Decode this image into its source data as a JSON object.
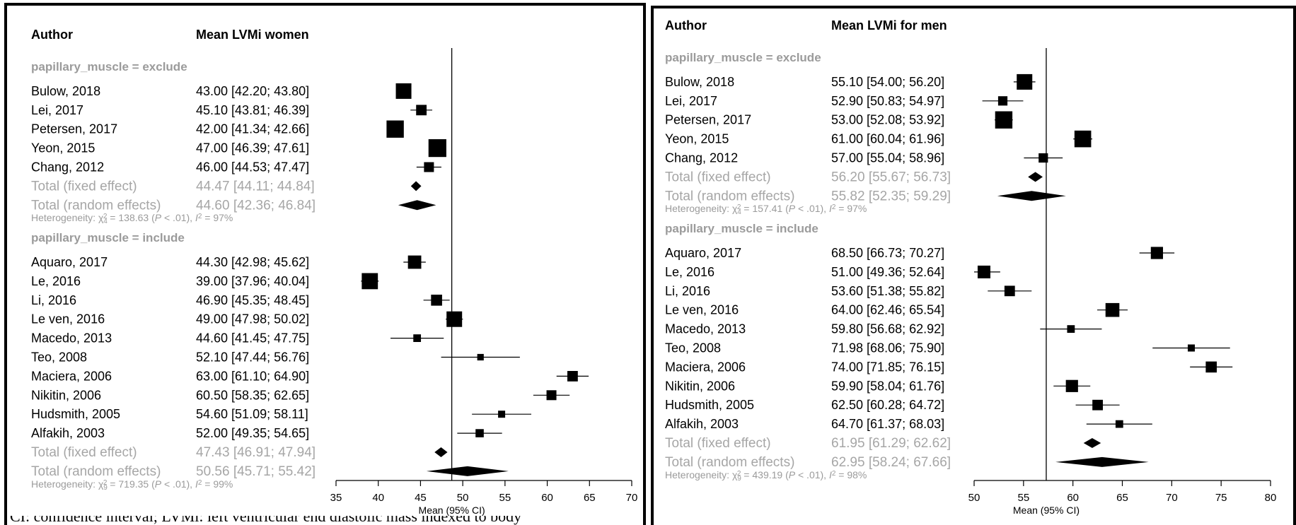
{
  "chart_data": [
    {
      "type": "forest",
      "columns": {
        "author": "Author",
        "estimate": "Mean LVMi women"
      },
      "xlabel": "Mean (95% CI)",
      "xlim": [
        35,
        70
      ],
      "xticks": [
        35,
        40,
        45,
        50,
        55,
        60,
        65,
        70
      ],
      "reference_line": 48.7,
      "groups": [
        {
          "label": "papillary_muscle = exclude",
          "studies": [
            {
              "author": "Bulow, 2018",
              "mean": 43.0,
              "lower": 42.2,
              "upper": 43.8,
              "ci_text": "43.00 [42.20; 43.80]",
              "weight": 1.0
            },
            {
              "author": "Lei, 2017",
              "mean": 45.1,
              "lower": 43.81,
              "upper": 46.39,
              "ci_text": "45.10 [43.81; 46.39]",
              "weight": 0.55
            },
            {
              "author": "Petersen, 2017",
              "mean": 42.0,
              "lower": 41.34,
              "upper": 42.66,
              "ci_text": "42.00 [41.34; 42.66]",
              "weight": 1.15
            },
            {
              "author": "Yeon, 2015",
              "mean": 47.0,
              "lower": 46.39,
              "upper": 47.61,
              "ci_text": "47.00 [46.39; 47.61]",
              "weight": 1.2
            },
            {
              "author": "Chang, 2012",
              "mean": 46.0,
              "lower": 44.53,
              "upper": 47.47,
              "ci_text": "46.00 [44.53; 47.47]",
              "weight": 0.5
            }
          ],
          "fixed": {
            "label": "Total (fixed effect)",
            "mean": 44.47,
            "lower": 44.11,
            "upper": 44.84,
            "ci_text": "44.47 [44.11; 44.84]"
          },
          "random": {
            "label": "Total (random effects)",
            "mean": 44.6,
            "lower": 42.36,
            "upper": 46.84,
            "ci_text": "44.60 [42.36; 46.84]"
          },
          "heterogeneity": {
            "prefix": "Heterogeneity: χ",
            "sub": "4",
            "sup": "2",
            "rest": " = 138.63 (",
            "p": "P",
            "prest": " < .01), ",
            "i": "I",
            "isup": "2",
            "iend": " = 97%"
          }
        },
        {
          "label": "papillary_muscle = include",
          "studies": [
            {
              "author": "Aquaro, 2017",
              "mean": 44.3,
              "lower": 42.98,
              "upper": 45.62,
              "ci_text": "44.30 [42.98; 45.62]",
              "weight": 0.8
            },
            {
              "author": "Le, 2016",
              "mean": 39.0,
              "lower": 37.96,
              "upper": 40.04,
              "ci_text": "39.00 [37.96; 40.04]",
              "weight": 1.05
            },
            {
              "author": "Li, 2016",
              "mean": 46.9,
              "lower": 45.35,
              "upper": 48.45,
              "ci_text": "46.90 [45.35; 48.45]",
              "weight": 0.6
            },
            {
              "author": "Le ven, 2016",
              "mean": 49.0,
              "lower": 47.98,
              "upper": 50.02,
              "ci_text": "49.00 [47.98; 50.02]",
              "weight": 1.0
            },
            {
              "author": "Macedo, 2013",
              "mean": 44.6,
              "lower": 41.45,
              "upper": 47.75,
              "ci_text": "44.60 [41.45; 47.75]",
              "weight": 0.3
            },
            {
              "author": "Teo, 2008",
              "mean": 52.1,
              "lower": 47.44,
              "upper": 56.76,
              "ci_text": "52.10 [47.44; 56.76]",
              "weight": 0.2
            },
            {
              "author": "Maciera, 2006",
              "mean": 63.0,
              "lower": 61.1,
              "upper": 64.9,
              "ci_text": "63.00 [61.10; 64.90]",
              "weight": 0.55
            },
            {
              "author": "Nikitin, 2006",
              "mean": 60.5,
              "lower": 58.35,
              "upper": 62.65,
              "ci_text": "60.50 [58.35; 62.65]",
              "weight": 0.5
            },
            {
              "author": "Hudsmith, 2005",
              "mean": 54.6,
              "lower": 51.09,
              "upper": 58.11,
              "ci_text": "54.60 [51.09; 58.11]",
              "weight": 0.25
            },
            {
              "author": "Alfakih, 2003",
              "mean": 52.0,
              "lower": 49.35,
              "upper": 54.65,
              "ci_text": "52.00 [49.35; 54.65]",
              "weight": 0.35
            }
          ],
          "fixed": {
            "label": "Total (fixed effect)",
            "mean": 47.43,
            "lower": 46.91,
            "upper": 47.94,
            "ci_text": "47.43 [46.91; 47.94]"
          },
          "random": {
            "label": "Total (random effects)",
            "mean": 50.56,
            "lower": 45.71,
            "upper": 55.42,
            "ci_text": "50.56 [45.71; 55.42]"
          },
          "heterogeneity": {
            "prefix": "Heterogeneity: χ",
            "sub": "9",
            "sup": "2",
            "rest": " = 719.35 (",
            "p": "P",
            "prest": " < .01), ",
            "i": "I",
            "isup": "2",
            "iend": " = 99%"
          }
        }
      ]
    },
    {
      "type": "forest",
      "columns": {
        "author": "Author",
        "estimate": "Mean LVMi for men"
      },
      "xlabel": "Mean (95% CI)",
      "xlim": [
        50,
        80
      ],
      "xticks": [
        50,
        55,
        60,
        65,
        70,
        75,
        80
      ],
      "reference_line": 57.3,
      "groups": [
        {
          "label": "papillary_muscle = exclude",
          "studies": [
            {
              "author": "Bulow, 2018",
              "mean": 55.1,
              "lower": 54.0,
              "upper": 56.2,
              "ci_text": "55.10 [54.00; 56.20]",
              "weight": 1.0
            },
            {
              "author": "Lei, 2017",
              "mean": 52.9,
              "lower": 50.83,
              "upper": 54.97,
              "ci_text": "52.90 [50.83; 54.97]",
              "weight": 0.45
            },
            {
              "author": "Petersen, 2017",
              "mean": 53.0,
              "lower": 52.08,
              "upper": 53.92,
              "ci_text": "53.00 [52.08; 53.92]",
              "weight": 1.15
            },
            {
              "author": "Yeon, 2015",
              "mean": 61.0,
              "lower": 60.04,
              "upper": 61.96,
              "ci_text": "61.00 [60.04; 61.96]",
              "weight": 1.1
            },
            {
              "author": "Chang, 2012",
              "mean": 57.0,
              "lower": 55.04,
              "upper": 58.96,
              "ci_text": "57.00 [55.04; 58.96]",
              "weight": 0.45
            }
          ],
          "fixed": {
            "label": "Total (fixed effect)",
            "mean": 56.2,
            "lower": 55.67,
            "upper": 56.73,
            "ci_text": "56.20 [55.67; 56.73]"
          },
          "random": {
            "label": "Total (random effects)",
            "mean": 55.82,
            "lower": 52.35,
            "upper": 59.29,
            "ci_text": "55.82 [52.35; 59.29]"
          },
          "heterogeneity": {
            "prefix": "Heterogeneity: χ",
            "sub": "4",
            "sup": "2",
            "rest": " = 157.41 (",
            "p": "P",
            "prest": " < .01), ",
            "i": "I",
            "isup": "2",
            "iend": " = 97%"
          }
        },
        {
          "label": "papillary_muscle = include",
          "studies": [
            {
              "author": "Aquaro, 2017",
              "mean": 68.5,
              "lower": 66.73,
              "upper": 70.27,
              "ci_text": "68.50 [66.73; 70.27]",
              "weight": 0.7
            },
            {
              "author": "Le, 2016",
              "mean": 51.0,
              "lower": 49.36,
              "upper": 52.64,
              "ci_text": "51.00 [49.36; 52.64]",
              "weight": 0.75
            },
            {
              "author": "Li, 2016",
              "mean": 53.6,
              "lower": 51.38,
              "upper": 55.82,
              "ci_text": "53.60 [51.38; 55.82]",
              "weight": 0.55
            },
            {
              "author": "Le ven, 2016",
              "mean": 64.0,
              "lower": 62.46,
              "upper": 65.54,
              "ci_text": "64.00 [62.46; 65.54]",
              "weight": 0.85
            },
            {
              "author": "Macedo, 2013",
              "mean": 59.8,
              "lower": 56.68,
              "upper": 62.92,
              "ci_text": "59.80 [56.68; 62.92]",
              "weight": 0.3
            },
            {
              "author": "Teo, 2008",
              "mean": 71.98,
              "lower": 68.06,
              "upper": 75.9,
              "ci_text": "71.98 [68.06; 75.90]",
              "weight": 0.25
            },
            {
              "author": "Maciera, 2006",
              "mean": 74.0,
              "lower": 71.85,
              "upper": 76.15,
              "ci_text": "74.00 [71.85; 76.15]",
              "weight": 0.6
            },
            {
              "author": "Nikitin, 2006",
              "mean": 59.9,
              "lower": 58.04,
              "upper": 61.76,
              "ci_text": "59.90 [58.04; 61.76]",
              "weight": 0.7
            },
            {
              "author": "Hudsmith, 2005",
              "mean": 62.5,
              "lower": 60.28,
              "upper": 64.72,
              "ci_text": "62.50 [60.28; 64.72]",
              "weight": 0.55
            },
            {
              "author": "Alfakih, 2003",
              "mean": 64.7,
              "lower": 61.37,
              "upper": 68.03,
              "ci_text": "64.70 [61.37; 68.03]",
              "weight": 0.3
            }
          ],
          "fixed": {
            "label": "Total (fixed effect)",
            "mean": 61.95,
            "lower": 61.29,
            "upper": 62.62,
            "ci_text": "61.95 [61.29; 62.62]"
          },
          "random": {
            "label": "Total (random effects)",
            "mean": 62.95,
            "lower": 58.24,
            "upper": 67.66,
            "ci_text": "62.95 [58.24; 67.66]"
          },
          "heterogeneity": {
            "prefix": "Heterogeneity: χ",
            "sub": "9",
            "sup": "2",
            "rest": " = 439.19 (",
            "p": "P",
            "prest": " < .01), ",
            "i": "I",
            "isup": "2",
            "iend": " = 98%"
          }
        }
      ]
    }
  ],
  "caption_fragment": "CI: confidence interval; LVMi: left ventricular end diastolic mass indexed to body",
  "colors": {
    "text": "#000000",
    "summary_text": "#a6a6a6",
    "subgroup_label": "#9b9b9b",
    "heterogeneity": "#9b9b9b",
    "marker": "#000000",
    "border": "#000000"
  }
}
